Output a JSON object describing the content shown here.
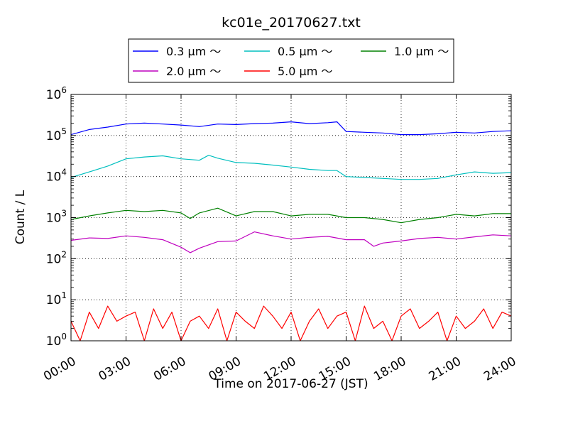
{
  "chart_data": {
    "type": "line",
    "title": "kc01e_20170627.txt",
    "xlabel": "Time on 2017-06-27 (JST)",
    "ylabel": "Count / L",
    "y_scale": "log",
    "ylim": [
      1,
      1000000
    ],
    "xlim": [
      "00:00",
      "24:00"
    ],
    "grid": true,
    "legend_placement": "top-center",
    "x_tick_labels": [
      "00:00",
      "03:00",
      "06:00",
      "09:00",
      "12:00",
      "15:00",
      "18:00",
      "21:00",
      "24:00"
    ],
    "y_ticks": [
      {
        "base": "10",
        "exp": "0"
      },
      {
        "base": "10",
        "exp": "1"
      },
      {
        "base": "10",
        "exp": "2"
      },
      {
        "base": "10",
        "exp": "3"
      },
      {
        "base": "10",
        "exp": "4"
      },
      {
        "base": "10",
        "exp": "5"
      },
      {
        "base": "10",
        "exp": "6"
      }
    ],
    "series": [
      {
        "name": "0.3 µm ～",
        "color": "#0000ff",
        "x": [
          "00:00",
          "01:00",
          "02:00",
          "03:00",
          "04:00",
          "05:00",
          "06:00",
          "07:00",
          "08:00",
          "09:00",
          "10:00",
          "11:00",
          "12:00",
          "13:00",
          "14:00",
          "14:30",
          "15:00",
          "16:00",
          "17:00",
          "18:00",
          "19:00",
          "20:00",
          "21:00",
          "22:00",
          "23:00",
          "24:00"
        ],
        "y": [
          105000,
          140000,
          160000,
          190000,
          200000,
          190000,
          180000,
          165000,
          190000,
          185000,
          195000,
          200000,
          215000,
          195000,
          205000,
          215000,
          125000,
          120000,
          115000,
          105000,
          105000,
          110000,
          120000,
          115000,
          125000,
          130000
        ]
      },
      {
        "name": "0.5 µm ～",
        "color": "#00bfbf",
        "x": [
          "00:00",
          "01:00",
          "02:00",
          "03:00",
          "04:00",
          "05:00",
          "06:00",
          "07:00",
          "07:30",
          "08:00",
          "09:00",
          "10:00",
          "11:00",
          "12:00",
          "13:00",
          "14:00",
          "14:30",
          "15:00",
          "16:00",
          "17:00",
          "18:00",
          "19:00",
          "20:00",
          "21:00",
          "22:00",
          "23:00",
          "24:00"
        ],
        "y": [
          9500,
          13000,
          18000,
          27000,
          30000,
          32000,
          27000,
          25000,
          33000,
          28000,
          22000,
          21000,
          19000,
          17000,
          15000,
          14000,
          14000,
          10000,
          9500,
          9000,
          8500,
          8500,
          9000,
          11000,
          13000,
          12000,
          12500
        ]
      },
      {
        "name": "1.0 µm ～",
        "color": "#008000",
        "x": [
          "00:00",
          "01:00",
          "02:00",
          "03:00",
          "04:00",
          "05:00",
          "06:00",
          "06:30",
          "07:00",
          "08:00",
          "09:00",
          "10:00",
          "11:00",
          "12:00",
          "13:00",
          "14:00",
          "15:00",
          "16:00",
          "17:00",
          "18:00",
          "19:00",
          "20:00",
          "21:00",
          "22:00",
          "23:00",
          "24:00"
        ],
        "y": [
          900,
          1100,
          1300,
          1500,
          1400,
          1500,
          1300,
          950,
          1300,
          1700,
          1100,
          1400,
          1400,
          1100,
          1200,
          1200,
          1000,
          1000,
          900,
          750,
          900,
          1000,
          1200,
          1100,
          1250,
          1250
        ]
      },
      {
        "name": "2.0 µm ～",
        "color": "#bf00bf",
        "x": [
          "00:00",
          "01:00",
          "02:00",
          "03:00",
          "04:00",
          "05:00",
          "06:00",
          "06:30",
          "07:00",
          "08:00",
          "09:00",
          "10:00",
          "11:00",
          "12:00",
          "13:00",
          "14:00",
          "15:00",
          "16:00",
          "16:30",
          "17:00",
          "18:00",
          "19:00",
          "20:00",
          "21:00",
          "22:00",
          "23:00",
          "24:00"
        ],
        "y": [
          280,
          320,
          310,
          360,
          330,
          290,
          190,
          140,
          180,
          260,
          270,
          450,
          360,
          300,
          330,
          350,
          290,
          290,
          200,
          240,
          270,
          310,
          330,
          300,
          340,
          380,
          360
        ]
      },
      {
        "name": "5.0 µm ～",
        "color": "#ff0000",
        "x": [
          "00:00",
          "00:30",
          "01:00",
          "01:30",
          "02:00",
          "02:30",
          "03:00",
          "03:30",
          "04:00",
          "04:30",
          "05:00",
          "05:30",
          "06:00",
          "06:30",
          "07:00",
          "07:30",
          "08:00",
          "08:30",
          "09:00",
          "09:30",
          "10:00",
          "10:30",
          "11:00",
          "11:30",
          "12:00",
          "12:30",
          "13:00",
          "13:30",
          "14:00",
          "14:30",
          "15:00",
          "15:30",
          "16:00",
          "16:30",
          "17:00",
          "17:30",
          "18:00",
          "18:30",
          "19:00",
          "19:30",
          "20:00",
          "20:30",
          "21:00",
          "21:30",
          "22:00",
          "22:30",
          "23:00",
          "23:30",
          "24:00"
        ],
        "y": [
          3,
          1,
          5,
          2,
          7,
          3,
          4,
          5,
          1,
          6,
          2,
          5,
          1,
          3,
          4,
          2,
          6,
          1,
          5,
          3,
          2,
          7,
          4,
          2,
          5,
          1,
          3,
          6,
          2,
          4,
          5,
          1,
          7,
          2,
          3,
          1,
          4,
          6,
          2,
          3,
          5,
          1,
          4,
          2,
          3,
          6,
          2,
          5,
          4
        ]
      }
    ]
  }
}
